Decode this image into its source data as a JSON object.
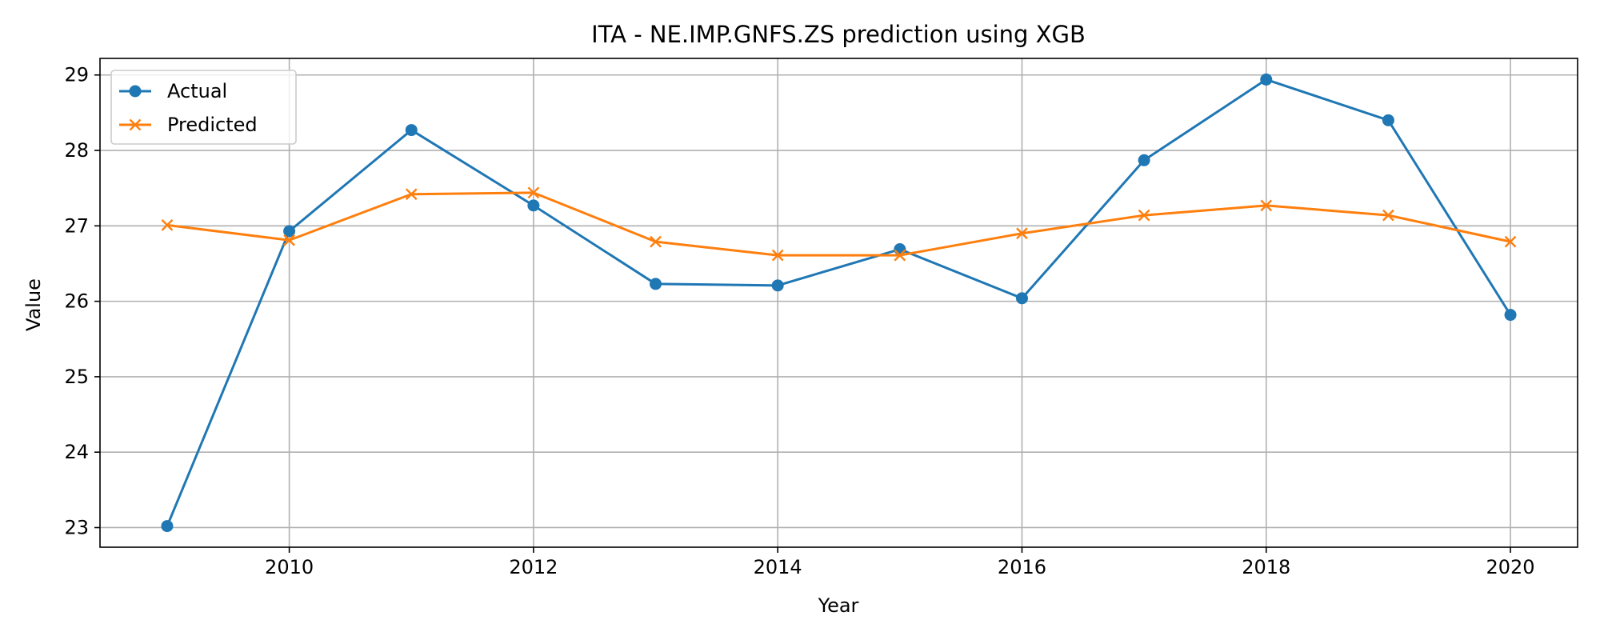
{
  "chart_data": {
    "type": "line",
    "title": "ITA - NE.IMP.GNFS.ZS prediction using XGB",
    "xlabel": "Year",
    "ylabel": "Value",
    "x": [
      2009,
      2010,
      2011,
      2012,
      2013,
      2014,
      2015,
      2016,
      2017,
      2018,
      2019,
      2020
    ],
    "xlim": [
      2008.45,
      2020.55
    ],
    "ylim": [
      22.74,
      29.22
    ],
    "xticks": [
      2010,
      2012,
      2014,
      2016,
      2018,
      2020
    ],
    "yticks": [
      23,
      24,
      25,
      26,
      27,
      28,
      29
    ],
    "grid": true,
    "legend_position": "upper-left",
    "series": [
      {
        "name": "Actual",
        "color": "#1f77b4",
        "marker": "circle",
        "values": [
          23.02,
          26.93,
          28.27,
          27.27,
          26.23,
          26.21,
          26.69,
          26.04,
          27.87,
          28.94,
          28.4,
          25.82
        ]
      },
      {
        "name": "Predicted",
        "color": "#ff7f0e",
        "marker": "x",
        "values": [
          27.01,
          26.81,
          27.42,
          27.44,
          26.79,
          26.61,
          26.61,
          26.9,
          27.14,
          27.27,
          27.14,
          26.79
        ]
      }
    ]
  }
}
